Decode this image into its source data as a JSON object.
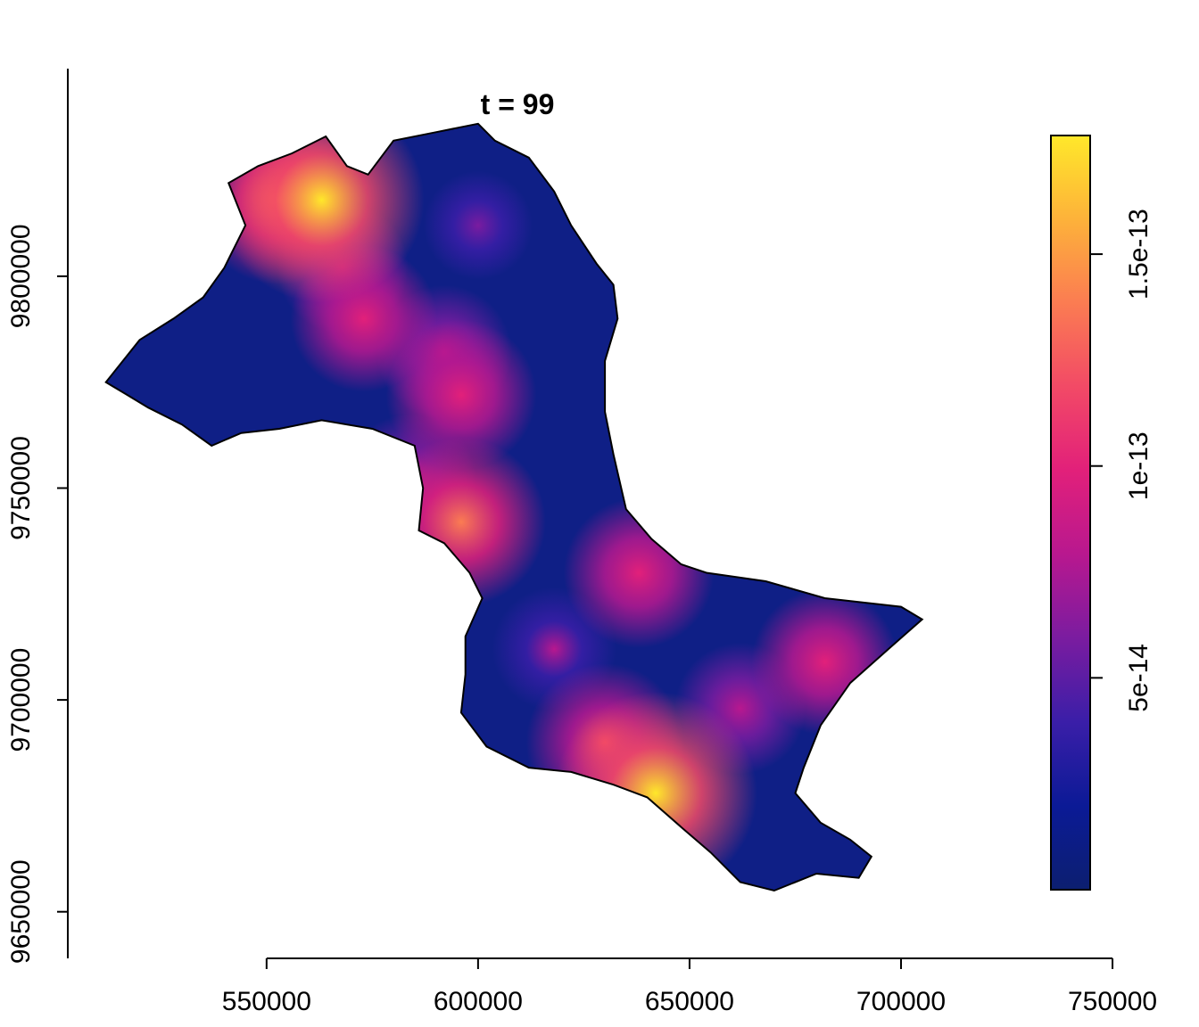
{
  "chart_data": {
    "type": "heatmap",
    "title": "t = 99",
    "xlabel": "",
    "ylabel": "",
    "xlim": [
      503000,
      754000
    ],
    "ylim": [
      9639000,
      9849000
    ],
    "x_ticks": [
      550000,
      600000,
      650000,
      700000,
      750000
    ],
    "x_tick_labels": [
      "550000",
      "600000",
      "650000",
      "700000",
      "750000"
    ],
    "y_ticks": [
      9650000,
      9700000,
      9750000,
      9800000
    ],
    "y_tick_labels": [
      "9650000",
      "9700000",
      "9750000",
      "9800000"
    ],
    "grid": false,
    "colorbar": {
      "min": 0,
      "max": 1.78e-13,
      "ticks": [
        5e-14,
        1e-13,
        1.5e-13
      ],
      "tick_labels": [
        "5e-14",
        "1e-13",
        "1.5e-13"
      ],
      "placement": "right",
      "colors": [
        "#0c1f70",
        "#0b1a96",
        "#3a1ea8",
        "#7a1ca0",
        "#b8188f",
        "#e2207a",
        "#f24a66",
        "#fb7c52",
        "#fdb23a",
        "#ffe82a"
      ]
    },
    "boundary_polygon": [
      [
        512000,
        9775000
      ],
      [
        520000,
        9785000
      ],
      [
        528000,
        9790000
      ],
      [
        535000,
        9795000
      ],
      [
        540000,
        9802000
      ],
      [
        545000,
        9812000
      ],
      [
        541000,
        9822000
      ],
      [
        548000,
        9826000
      ],
      [
        556000,
        9829000
      ],
      [
        564000,
        9833000
      ],
      [
        569000,
        9826000
      ],
      [
        574000,
        9824000
      ],
      [
        580000,
        9832000
      ],
      [
        590000,
        9834000
      ],
      [
        600000,
        9836000
      ],
      [
        604000,
        9832000
      ],
      [
        612000,
        9828000
      ],
      [
        618000,
        9820000
      ],
      [
        622000,
        9812000
      ],
      [
        628000,
        9803000
      ],
      [
        632000,
        9798000
      ],
      [
        633000,
        9790000
      ],
      [
        630000,
        9780000
      ],
      [
        630000,
        9768000
      ],
      [
        632000,
        9758000
      ],
      [
        635000,
        9745000
      ],
      [
        641000,
        9738000
      ],
      [
        648000,
        9732000
      ],
      [
        654000,
        9730000
      ],
      [
        668000,
        9728000
      ],
      [
        682000,
        9724000
      ],
      [
        700000,
        9722000
      ],
      [
        705000,
        9719000
      ],
      [
        697000,
        9712000
      ],
      [
        688000,
        9704000
      ],
      [
        681000,
        9694000
      ],
      [
        677000,
        9684000
      ],
      [
        675000,
        9678000
      ],
      [
        681000,
        9671000
      ],
      [
        688000,
        9667000
      ],
      [
        693000,
        9663000
      ],
      [
        690000,
        9658000
      ],
      [
        680000,
        9659000
      ],
      [
        670000,
        9655000
      ],
      [
        662000,
        9657000
      ],
      [
        655000,
        9664000
      ],
      [
        648000,
        9670000
      ],
      [
        640000,
        9677000
      ],
      [
        632000,
        9680000
      ],
      [
        622000,
        9683000
      ],
      [
        612000,
        9684000
      ],
      [
        602000,
        9689000
      ],
      [
        596000,
        9697000
      ],
      [
        597000,
        9706000
      ],
      [
        597000,
        9715000
      ],
      [
        601000,
        9724000
      ],
      [
        598000,
        9730000
      ],
      [
        592000,
        9737000
      ],
      [
        586000,
        9740000
      ],
      [
        587000,
        9750000
      ],
      [
        585000,
        9760000
      ],
      [
        575000,
        9764000
      ],
      [
        563000,
        9766000
      ],
      [
        553000,
        9764000
      ],
      [
        544000,
        9763000
      ],
      [
        537000,
        9760000
      ],
      [
        530000,
        9765000
      ],
      [
        522000,
        9769000
      ],
      [
        517000,
        9772000
      ]
    ],
    "hotspots": [
      {
        "x": 563000,
        "y": 9818000,
        "value": 1.78e-13
      },
      {
        "x": 553000,
        "y": 9818000,
        "value": 1.3e-13
      },
      {
        "x": 573000,
        "y": 9790000,
        "value": 1e-13
      },
      {
        "x": 592000,
        "y": 9782000,
        "value": 8.5e-14
      },
      {
        "x": 596000,
        "y": 9772000,
        "value": 1.05e-13
      },
      {
        "x": 596000,
        "y": 9742000,
        "value": 1.3e-13
      },
      {
        "x": 584000,
        "y": 9752000,
        "value": 8e-14
      },
      {
        "x": 638000,
        "y": 9730000,
        "value": 1.05e-13
      },
      {
        "x": 642000,
        "y": 9678000,
        "value": 1.75e-13
      },
      {
        "x": 630000,
        "y": 9690000,
        "value": 1.15e-13
      },
      {
        "x": 618000,
        "y": 9712000,
        "value": 7e-14
      },
      {
        "x": 682000,
        "y": 9709000,
        "value": 1e-13
      },
      {
        "x": 662000,
        "y": 9698000,
        "value": 8e-14
      },
      {
        "x": 600000,
        "y": 9812000,
        "value": 5e-14
      },
      {
        "x": 568000,
        "y": 9802000,
        "value": 8e-14
      }
    ]
  }
}
